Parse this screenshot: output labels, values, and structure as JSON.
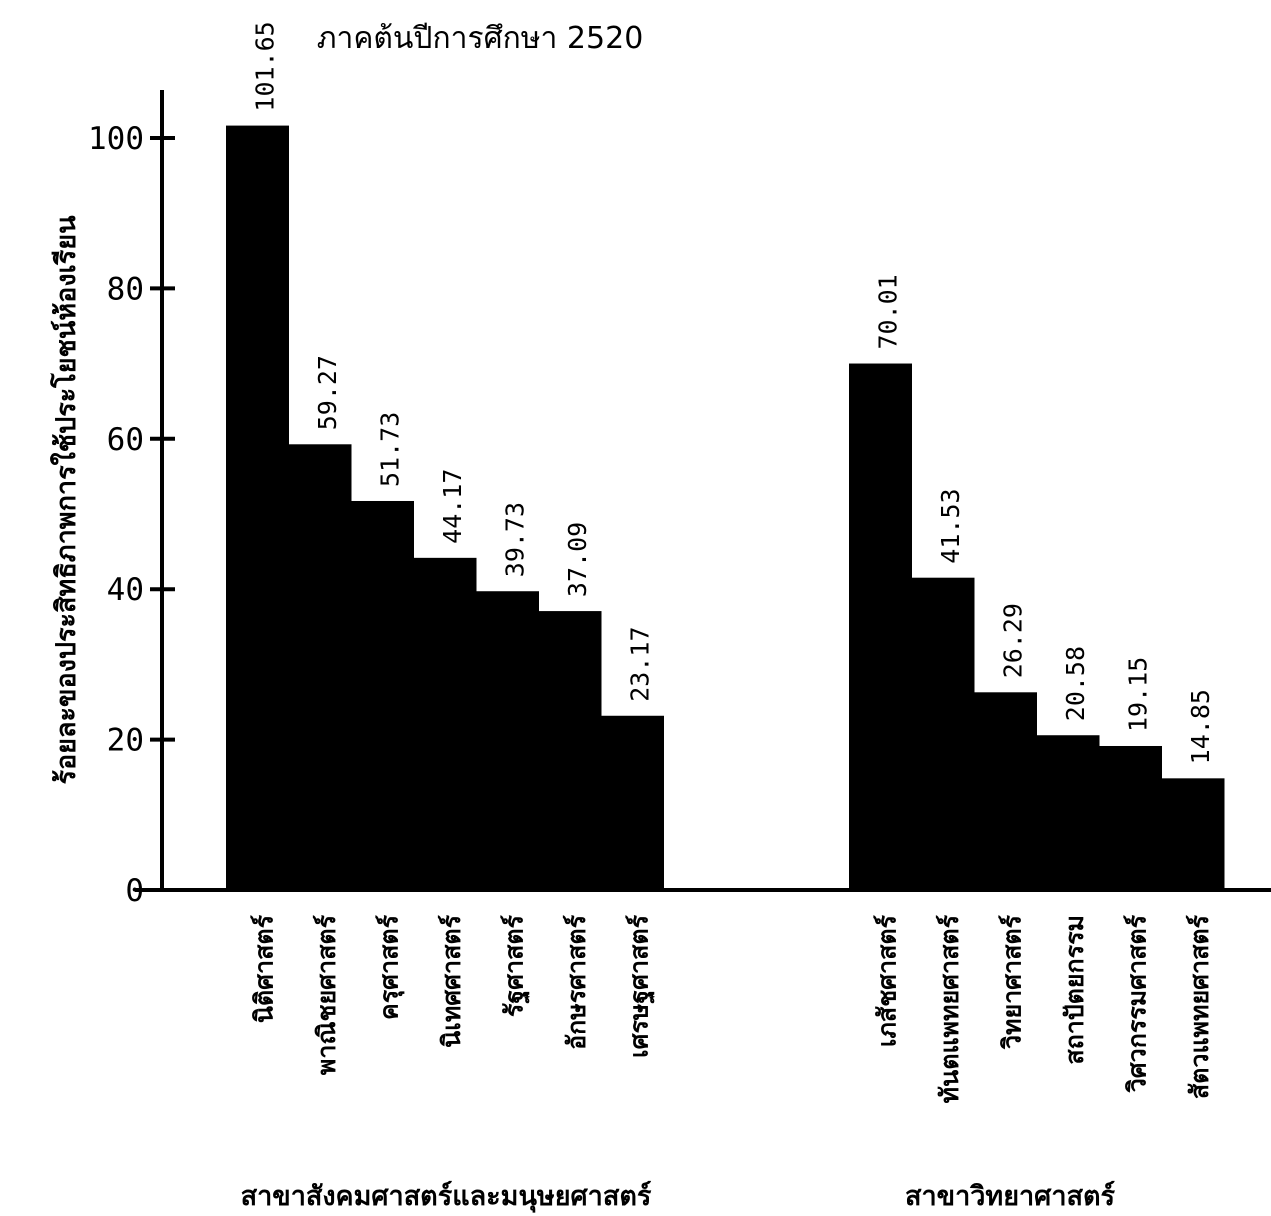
{
  "chart_data": {
    "type": "bar",
    "title": "ภาคต้นปีการศึกษา 2520",
    "ylabel": "ร้อยละของประสิทธิภาพการใช้ประโยชน์ห้องเรียน",
    "xlabel": "",
    "ylim": [
      0,
      105
    ],
    "yticks": [
      0,
      20,
      40,
      60,
      80,
      100
    ],
    "grid": false,
    "bar_color": "#000000",
    "groups": [
      {
        "name": "สาขาสังคมศาสตร์และมนุษยศาสตร์",
        "categories": [
          "นิติศาสตร์",
          "พาณิชยศาสตร์",
          "ครุศาสตร์",
          "นิเทศศาสตร์",
          "รัฐศาสตร์",
          "อักษรศาสตร์",
          "เศรษฐศาสตร์"
        ],
        "values": [
          101.65,
          59.27,
          51.73,
          44.17,
          39.73,
          37.09,
          23.17
        ],
        "labels": [
          "101.65",
          "59.27",
          "51.73",
          "44.17",
          "39.73",
          "37.09",
          "23.17"
        ]
      },
      {
        "name": "สาขาวิทยาศาสตร์",
        "categories": [
          "เภสัชศาสตร์",
          "ทันตแพทยศาสตร์",
          "วิทยาศาสตร์",
          "สถาปัตยกรรม",
          "วิศวกรรมศาสตร์",
          "สัตวแพทยศาสตร์"
        ],
        "values": [
          70.01,
          41.53,
          26.29,
          20.58,
          19.15,
          14.85
        ],
        "labels": [
          "70.01",
          "41.53",
          "26.29",
          "20.58",
          "19.15",
          "14.85"
        ]
      }
    ]
  }
}
